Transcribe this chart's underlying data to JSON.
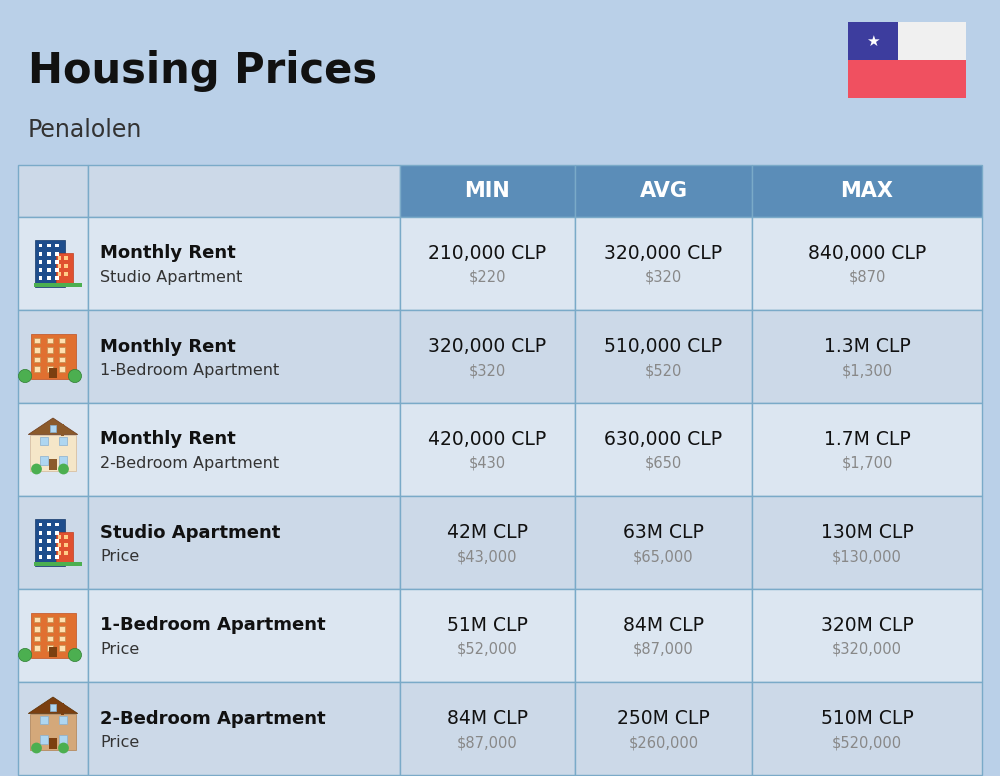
{
  "title": "Housing Prices",
  "subtitle": "Penalolen",
  "bg_color": "#bad0e8",
  "header_bg": "#5b8db8",
  "header_text_color": "#ffffff",
  "row_bg_odd": "#dce6f1",
  "row_bg_even": "#ccd9e8",
  "col_headers": [
    "MIN",
    "AVG",
    "MAX"
  ],
  "flag_colors": {
    "blue": "#3d3d9e",
    "red": "#f05060",
    "white": "#f0f0f0"
  },
  "rows": [
    {
      "icon_type": "building_blue",
      "label_bold": "Monthly Rent",
      "label_sub": "Studio Apartment",
      "min_clp": "210,000 CLP",
      "min_usd": "$220",
      "avg_clp": "320,000 CLP",
      "avg_usd": "$320",
      "max_clp": "840,000 CLP",
      "max_usd": "$870"
    },
    {
      "icon_type": "building_orange",
      "label_bold": "Monthly Rent",
      "label_sub": "1-Bedroom Apartment",
      "min_clp": "320,000 CLP",
      "min_usd": "$320",
      "avg_clp": "510,000 CLP",
      "avg_usd": "$520",
      "max_clp": "1.3M CLP",
      "max_usd": "$1,300"
    },
    {
      "icon_type": "house_beige",
      "label_bold": "Monthly Rent",
      "label_sub": "2-Bedroom Apartment",
      "min_clp": "420,000 CLP",
      "min_usd": "$430",
      "avg_clp": "630,000 CLP",
      "avg_usd": "$650",
      "max_clp": "1.7M CLP",
      "max_usd": "$1,700"
    },
    {
      "icon_type": "building_blue",
      "label_bold": "Studio Apartment",
      "label_sub": "Price",
      "min_clp": "42M CLP",
      "min_usd": "$43,000",
      "avg_clp": "63M CLP",
      "avg_usd": "$65,000",
      "max_clp": "130M CLP",
      "max_usd": "$130,000"
    },
    {
      "icon_type": "building_orange",
      "label_bold": "1-Bedroom Apartment",
      "label_sub": "Price",
      "min_clp": "51M CLP",
      "min_usd": "$52,000",
      "avg_clp": "84M CLP",
      "avg_usd": "$87,000",
      "max_clp": "320M CLP",
      "max_usd": "$320,000"
    },
    {
      "icon_type": "house_brown",
      "label_bold": "2-Bedroom Apartment",
      "label_sub": "Price",
      "min_clp": "84M CLP",
      "min_usd": "$87,000",
      "avg_clp": "250M CLP",
      "avg_usd": "$260,000",
      "max_clp": "510M CLP",
      "max_usd": "$520,000"
    }
  ]
}
